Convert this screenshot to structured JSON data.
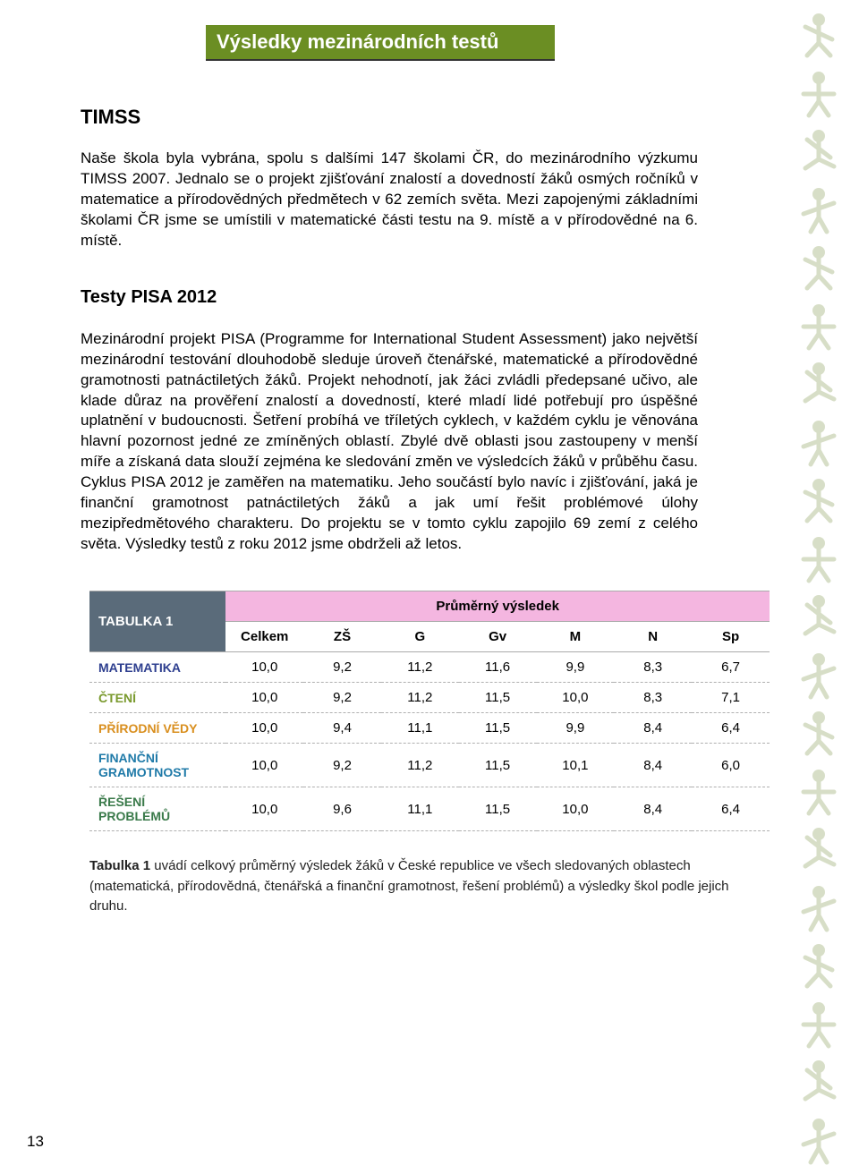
{
  "title_bar": "Výsledky mezinárodních testů",
  "section_timss": {
    "heading": "TIMSS",
    "paragraph": "Naše škola byla vybrána, spolu s dalšími 147 školami ČR, do mezinárodního výzkumu TIMSS 2007. Jednalo se o projekt zjišťování znalostí a dovedností žáků osmých ročníků v matematice a přírodovědných předmětech v 62 zemích světa. Mezi zapojenými základními školami ČR jsme se umístili v matematické části testu na 9. místě a v přírodovědné na 6. místě."
  },
  "section_pisa": {
    "heading": "Testy PISA 2012",
    "paragraph": "Mezinárodní projekt PISA (Programme for International Student Assessment) jako největší mezinárodní testování dlouhodobě sleduje úroveň čtenářské, matematické a přírodovědné gramotnosti patnáctiletých žáků. Projekt nehodnotí, jak žáci zvládli předepsané učivo, ale klade důraz na prověření znalostí a dovedností, které mladí lidé potřebují pro úspěšné uplatnění v budoucnosti. Šetření probíhá ve tříletých cyklech, v každém cyklu je věnována hlavní pozornost jedné ze zmíněných oblastí. Zbylé dvě oblasti jsou zastoupeny v menší míře a získaná data slouží zejména ke sledování změn ve výsledcích žáků v průběhu času. Cyklus PISA 2012 je zaměřen na matematiku.  Jeho součástí bylo navíc i zjišťování, jaká je finanční gramotnost patnáctiletých žáků a jak umí řešit problémové úlohy mezipředmětového charakteru. Do projektu se v tomto cyklu zapojilo 69 zemí z celého světa. Výsledky testů z roku 2012 jsme obdrželi až letos."
  },
  "table": {
    "type": "table",
    "corner_label": "TABULKA 1",
    "group_header": "Průměrný výsledek",
    "columns": [
      "Celkem",
      "ZŠ",
      "G",
      "Gv",
      "M",
      "N",
      "Sp"
    ],
    "col_widths_pct": [
      20,
      11.4,
      11.4,
      11.4,
      11.4,
      11.4,
      11.4,
      11.4
    ],
    "rows": [
      {
        "label": "MATEMATIKA",
        "color": "#2e3f8f",
        "values": [
          "10,0",
          "9,2",
          "11,2",
          "11,6",
          "9,9",
          "8,3",
          "6,7"
        ]
      },
      {
        "label": "ČTENÍ",
        "color": "#7a9a2e",
        "values": [
          "10,0",
          "9,2",
          "11,2",
          "11,5",
          "10,0",
          "8,3",
          "7,1"
        ]
      },
      {
        "label": "PŘÍRODNÍ VĚDY",
        "color": "#d98f1f",
        "values": [
          "10,0",
          "9,4",
          "11,1",
          "11,5",
          "9,9",
          "8,4",
          "6,4"
        ]
      },
      {
        "label": "FINANČNÍ GRAMOTNOST",
        "color": "#1f7aa8",
        "values": [
          "10,0",
          "9,2",
          "11,2",
          "11,5",
          "10,1",
          "8,4",
          "6,0"
        ]
      },
      {
        "label": "ŘEŠENÍ PROBLÉMŮ",
        "color": "#3a7a4a",
        "values": [
          "10,0",
          "9,6",
          "11,1",
          "11,5",
          "10,0",
          "8,4",
          "6,4"
        ]
      }
    ],
    "header_bg": "#f4b6e0",
    "corner_bg": "#5a6b7a",
    "corner_fg": "#ffffff",
    "row_border": "#b0b0b0",
    "font_size": 15
  },
  "caption": {
    "bold": "Tabulka 1",
    "rest": " uvádí celkový průměrný výsledek žáků v České republice ve všech sledovaných oblastech (matematická, přírodovědná, čtenářská a finanční gramotnost, řešení problémů) a výsledky škol podle jejich druhu."
  },
  "page_number": "13",
  "decor_color": "#b8c49a"
}
